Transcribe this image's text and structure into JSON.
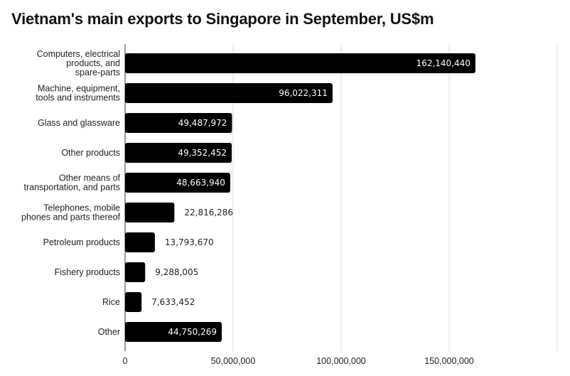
{
  "chart_data": {
    "type": "bar",
    "orientation": "horizontal",
    "title": "Vietnam's main exports to Singapore in September, US$m",
    "xlabel": "",
    "ylabel": "",
    "xlim": [
      0,
      200000000
    ],
    "xticks": [
      0,
      50000000,
      100000000,
      150000000
    ],
    "xtick_labels": [
      "0",
      "50,000,000",
      "100,000,000",
      "150,000,000"
    ],
    "grid": "vertical",
    "bar_color": "#000000",
    "categories": [
      [
        "Computers, electrical",
        "products, and",
        "spare-parts"
      ],
      [
        "Machine, equipment,",
        "tools and instruments"
      ],
      [
        "Glass and glassware"
      ],
      [
        "Other products"
      ],
      [
        "Other means of",
        "transportation, and parts"
      ],
      [
        "Telephones, mobile",
        "phones and parts thereof"
      ],
      [
        "Petroleum products"
      ],
      [
        "Fishery products"
      ],
      [
        "Rice"
      ],
      [
        "Other"
      ]
    ],
    "values": [
      162140440,
      96022311,
      49487972,
      49352452,
      48663940,
      22816286,
      13793670,
      9288005,
      7633452,
      44750269
    ],
    "value_labels": [
      "162,140,440",
      "96,022,311",
      "49,487,972",
      "49,352,452",
      "48,663,940",
      "22,816,286",
      "13,793,670",
      "9,288,005",
      "7,633,452",
      "44,750,269"
    ]
  }
}
